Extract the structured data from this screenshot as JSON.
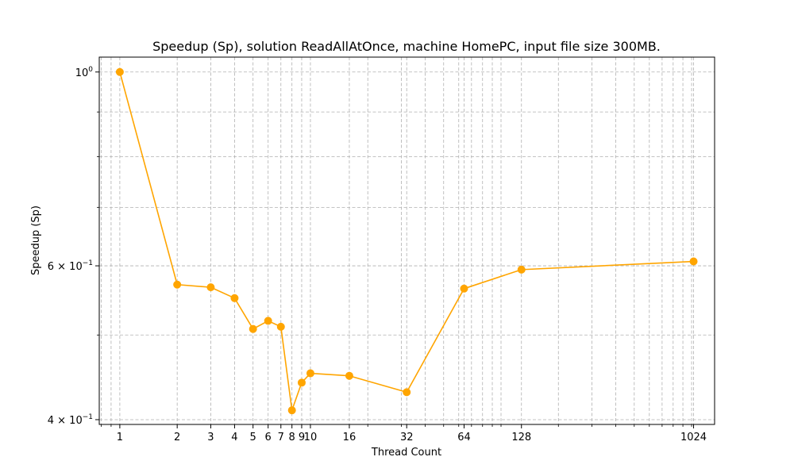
{
  "chart_data": {
    "type": "line",
    "title": "Speedup (Sp), solution ReadAllAtOnce, machine HomePC, input file size 300MB.",
    "xlabel": "Thread Count",
    "ylabel": "Speedup (Sp)",
    "x_scale": "log",
    "y_scale": "log",
    "grid": true,
    "xlim": [
      0.78,
      1320
    ],
    "ylim": [
      0.395,
      1.04
    ],
    "x_ticks": [
      1,
      2,
      3,
      4,
      5,
      6,
      7,
      8,
      9,
      10,
      16,
      32,
      64,
      128,
      1024
    ],
    "x_tick_labels": [
      "1",
      "2",
      "3",
      "4",
      "5",
      "6",
      "7",
      "8",
      "9",
      "10",
      "16",
      "32",
      "64",
      "128",
      "1024"
    ],
    "y_ticks": [
      {
        "value": 1.0,
        "base": "10",
        "exp": "0",
        "coef": ""
      },
      {
        "value": 0.6,
        "base": "10",
        "exp": "−1",
        "coef": "6 × "
      },
      {
        "value": 0.4,
        "base": "10",
        "exp": "−1",
        "coef": "4 × "
      }
    ],
    "color": "#ffa500",
    "series": [
      {
        "name": "",
        "x": [
          1,
          2,
          3,
          4,
          5,
          6,
          7,
          8,
          9,
          10,
          16,
          32,
          64,
          128,
          1024
        ],
        "y": [
          1.0,
          0.571,
          0.567,
          0.551,
          0.508,
          0.519,
          0.511,
          0.41,
          0.441,
          0.452,
          0.449,
          0.43,
          0.565,
          0.594,
          0.607
        ]
      }
    ]
  }
}
